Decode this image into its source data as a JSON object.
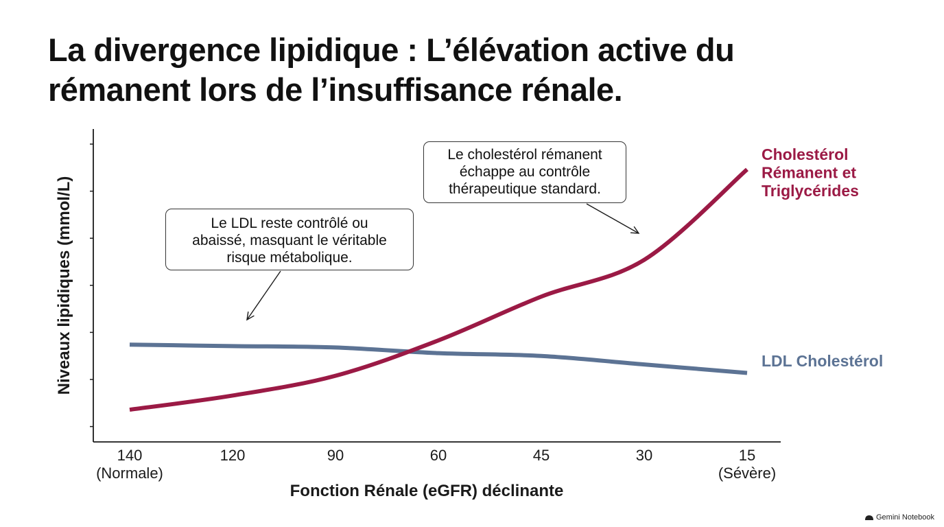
{
  "title": "La divergence lipidique : L’élévation active du rémanent lors de l’insuffisance rénale.",
  "watermark": "Gemini Notebook",
  "colors": {
    "remnant": "#9b1a45",
    "ldl": "#5c7394",
    "axis": "#1a1a1a",
    "text": "#111111"
  },
  "chart_data": {
    "type": "line",
    "xlabel": "Fonction Rénale (eGFR) déclinante",
    "ylabel": "Niveaux lipidiques (mmol/L)",
    "x": [
      "140",
      "120",
      "90",
      "60",
      "45",
      "30",
      "15"
    ],
    "x_sublabels": [
      "(Normale)",
      "",
      "",
      "",
      "",
      "",
      "(Sévère)"
    ],
    "y_ticks_labeled": false,
    "grid": false,
    "series": [
      {
        "name": "Cholestérol Rémanent et Triglycérides",
        "color": "#9b1a45",
        "values": [
          0.8,
          1.3,
          2.0,
          3.25,
          4.8,
          6.1,
          9.3
        ]
      },
      {
        "name": "LDL Cholestérol",
        "color": "#5c7394",
        "values": [
          3.1,
          3.05,
          3.0,
          2.8,
          2.7,
          2.4,
          2.1
        ]
      }
    ],
    "series_labels": [
      {
        "lines": [
          "Cholestérol",
          "Rémanent et",
          "Triglycérides"
        ]
      },
      {
        "lines": [
          "LDL Cholestérol"
        ]
      }
    ],
    "annotations": [
      {
        "text": "Le LDL reste contrôlé ou\nabaissé, masquant le véritable\nrisque métabolique.",
        "points_to_x": "120",
        "series": "LDL Cholestérol"
      },
      {
        "text": "Le cholestérol rémanent\néchappe au contrôle\nthérapeutique standard.",
        "points_to_x": "30",
        "series": "Cholestérol Rémanent et Triglycérides"
      }
    ]
  }
}
